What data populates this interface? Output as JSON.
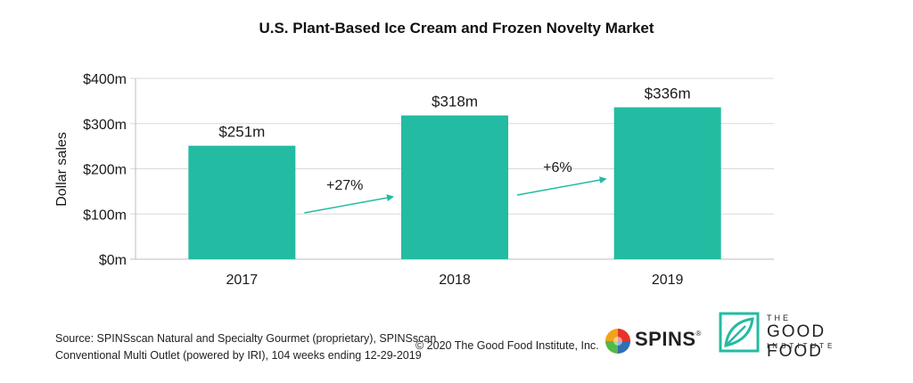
{
  "chart_data": {
    "type": "bar",
    "title": "U.S. Plant-Based Ice Cream and Frozen Novelty Market",
    "ylabel": "Dollar sales",
    "xlabel": "",
    "categories": [
      "2017",
      "2018",
      "2019"
    ],
    "values": [
      251,
      318,
      336
    ],
    "data_labels": [
      "$251m",
      "$318m",
      "$336m"
    ],
    "ylim": [
      0,
      400
    ],
    "yticks": [
      0,
      100,
      200,
      300,
      400
    ],
    "ytick_labels": [
      "$0m",
      "$100m",
      "$200m",
      "$300m",
      "$400m"
    ],
    "growth_labels": [
      "+27%",
      "+6%"
    ],
    "grid": true,
    "bar_color": "#23BBA1",
    "arrow_color": "#23BBA1"
  },
  "footer": {
    "source_line1": "Source: SPINSscan Natural and Specialty Gourmet (proprietary), SPINSscan",
    "source_line2": "Conventional Multi Outlet (powered by IRI), 104 weeks ending 12-29-2019",
    "copyright": "© 2020 The Good Food Institute, Inc."
  },
  "logos": {
    "spins": "SPINS",
    "spins_mark": "®",
    "gfi_the": "THE",
    "gfi_name": "GOOD FOOD",
    "gfi_institute": "INSTITUTE"
  }
}
